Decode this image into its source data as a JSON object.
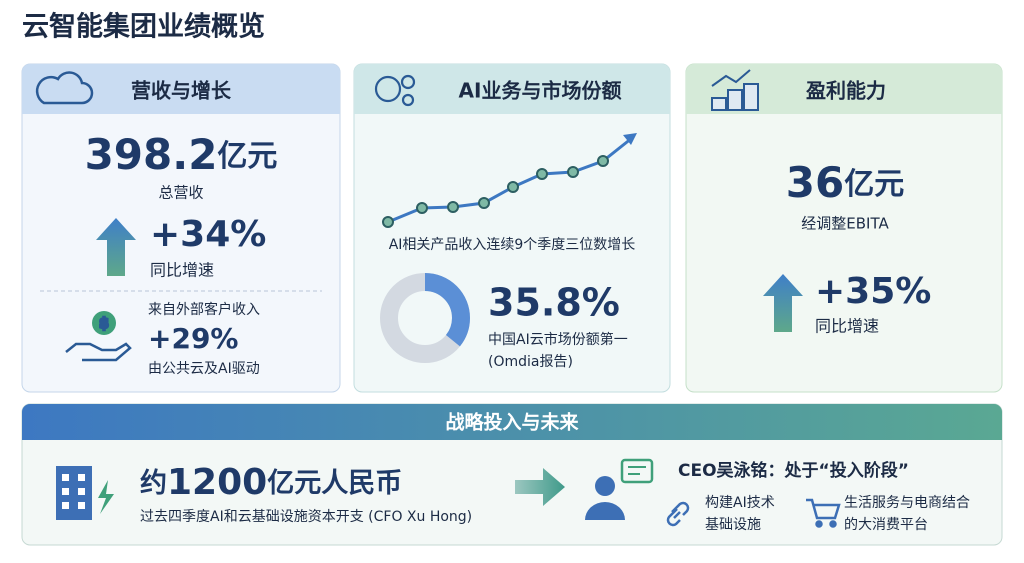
{
  "title": "云智能集团业绩概览",
  "cards": [
    {
      "title": "营收与增长",
      "revenue": "398.2",
      "revenue_unit": "亿元",
      "revenue_label": "总营收",
      "growth": "+34%",
      "growth_label": "同比增速",
      "external_title": "来自外部客户收入",
      "external_growth": "+29%",
      "external_note": "由公共云及AI驱动"
    },
    {
      "title": "AI业务与市场份额",
      "caption": "AI相关产品收入连续9个季度三位数增长",
      "market_share": {
        "value": 35.8,
        "label": "35.8%"
      },
      "share_note": "中国AI云市场份额第一",
      "share_source": "(Omdia报告)"
    },
    {
      "title": "盈利能力",
      "ebita": "36",
      "ebita_unit": "亿元",
      "ebita_label": "经调整EBITA",
      "growth": "+35%",
      "growth_label": "同比增速"
    }
  ],
  "strategy": {
    "title": "战略投入与未来",
    "capex_prefix": "约",
    "capex": "1200",
    "capex_unit": "亿元人民币",
    "capex_note": "过去四季度AI和云基础设施资本开支 (CFO Xu Hong)",
    "ceo": "CEO吴泳铭：处于“投入阶段”",
    "focus": [
      [
        "构建AI技术",
        "基础设施"
      ],
      [
        "生活服务与电商结合",
        "的大消费平台"
      ]
    ]
  }
}
